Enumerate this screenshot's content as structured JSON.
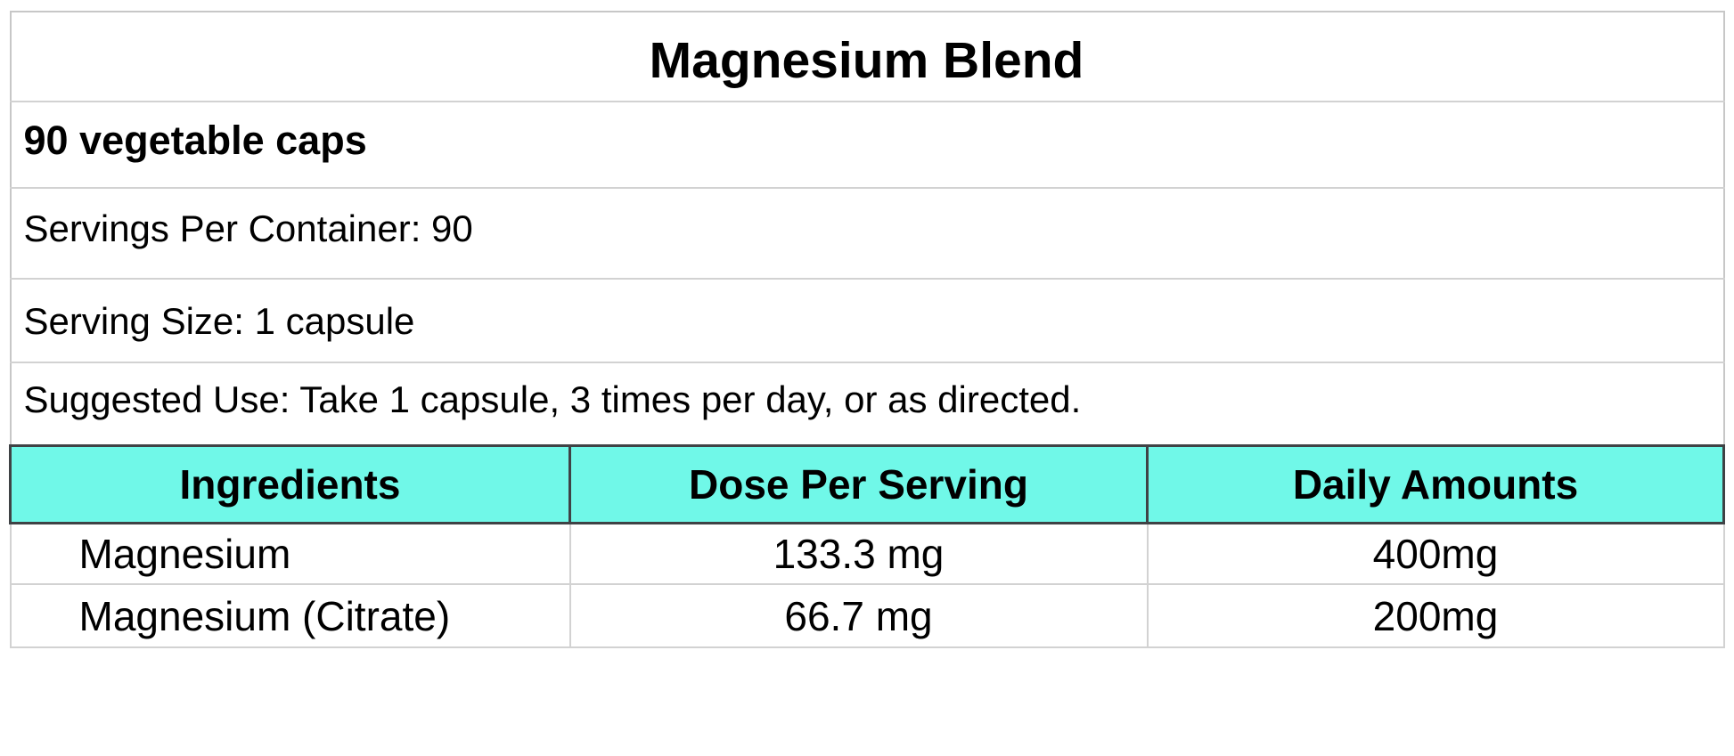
{
  "label": {
    "title": "Magnesium Blend",
    "subtitle": "90 vegetable caps",
    "servings_per_container": "Servings Per Container: 90",
    "serving_size": "Serving Size: 1 capsule",
    "suggested_use": "Suggested Use: Take 1 capsule, 3 times per day, or as directed."
  },
  "table": {
    "headers": [
      "Ingredients",
      "Dose Per Serving",
      "Daily Amounts"
    ],
    "rows": [
      {
        "ingredient": "Magnesium",
        "dose": "133.3 mg",
        "daily": "400mg"
      },
      {
        "ingredient": "Magnesium (Citrate)",
        "dose": "66.7 mg",
        "daily": "200mg"
      }
    ]
  },
  "colors": {
    "header_bg": "#70F8E8",
    "header_border": "#3F4245",
    "outer_border": "#C7C7C7",
    "grid_border": "#D2D2D2",
    "text_color": "#000000"
  }
}
